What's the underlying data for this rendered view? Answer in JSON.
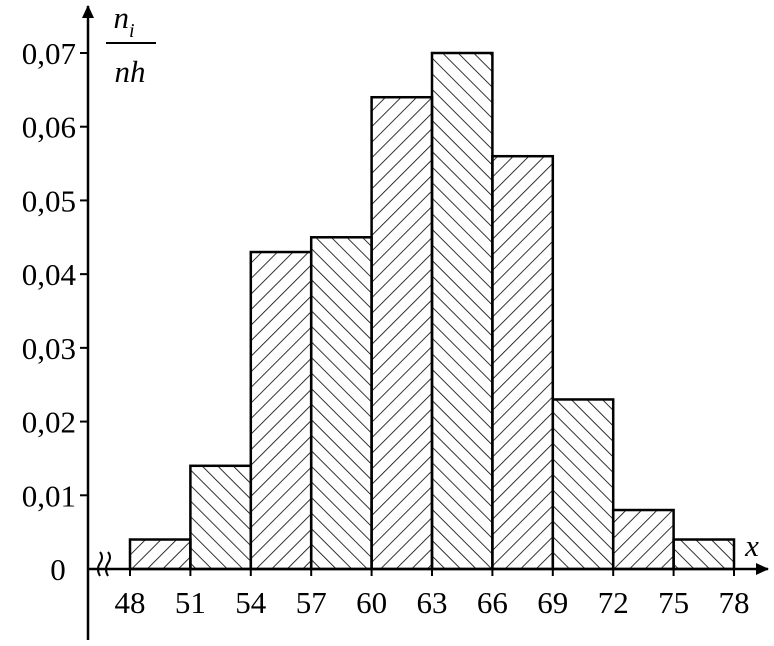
{
  "chart_data": {
    "type": "histogram",
    "bin_edges": [
      48,
      51,
      54,
      57,
      60,
      63,
      66,
      69,
      72,
      75,
      78
    ],
    "values": [
      0.004,
      0.014,
      0.043,
      0.045,
      0.064,
      0.07,
      0.056,
      0.023,
      0.008,
      0.004
    ],
    "hatch": [
      "right",
      "left",
      "right",
      "left",
      "right",
      "left",
      "right",
      "left",
      "right",
      "left"
    ],
    "x_tick_labels": [
      "48",
      "51",
      "54",
      "57",
      "60",
      "63",
      "66",
      "69",
      "72",
      "75",
      "78"
    ],
    "y_ticks": [
      0.01,
      0.02,
      0.03,
      0.04,
      0.05,
      0.06,
      0.07
    ],
    "y_tick_labels": [
      "0,01",
      "0,02",
      "0,03",
      "0,04",
      "0,05",
      "0,06",
      "0,07"
    ],
    "origin_label": "0",
    "xlabel": "x",
    "ylabel_numerator": "n",
    "ylabel_numerator_subscript": "i",
    "ylabel_denominator": "nh",
    "x_axis_break": true,
    "ylim": [
      0,
      0.07
    ],
    "grid": false
  }
}
